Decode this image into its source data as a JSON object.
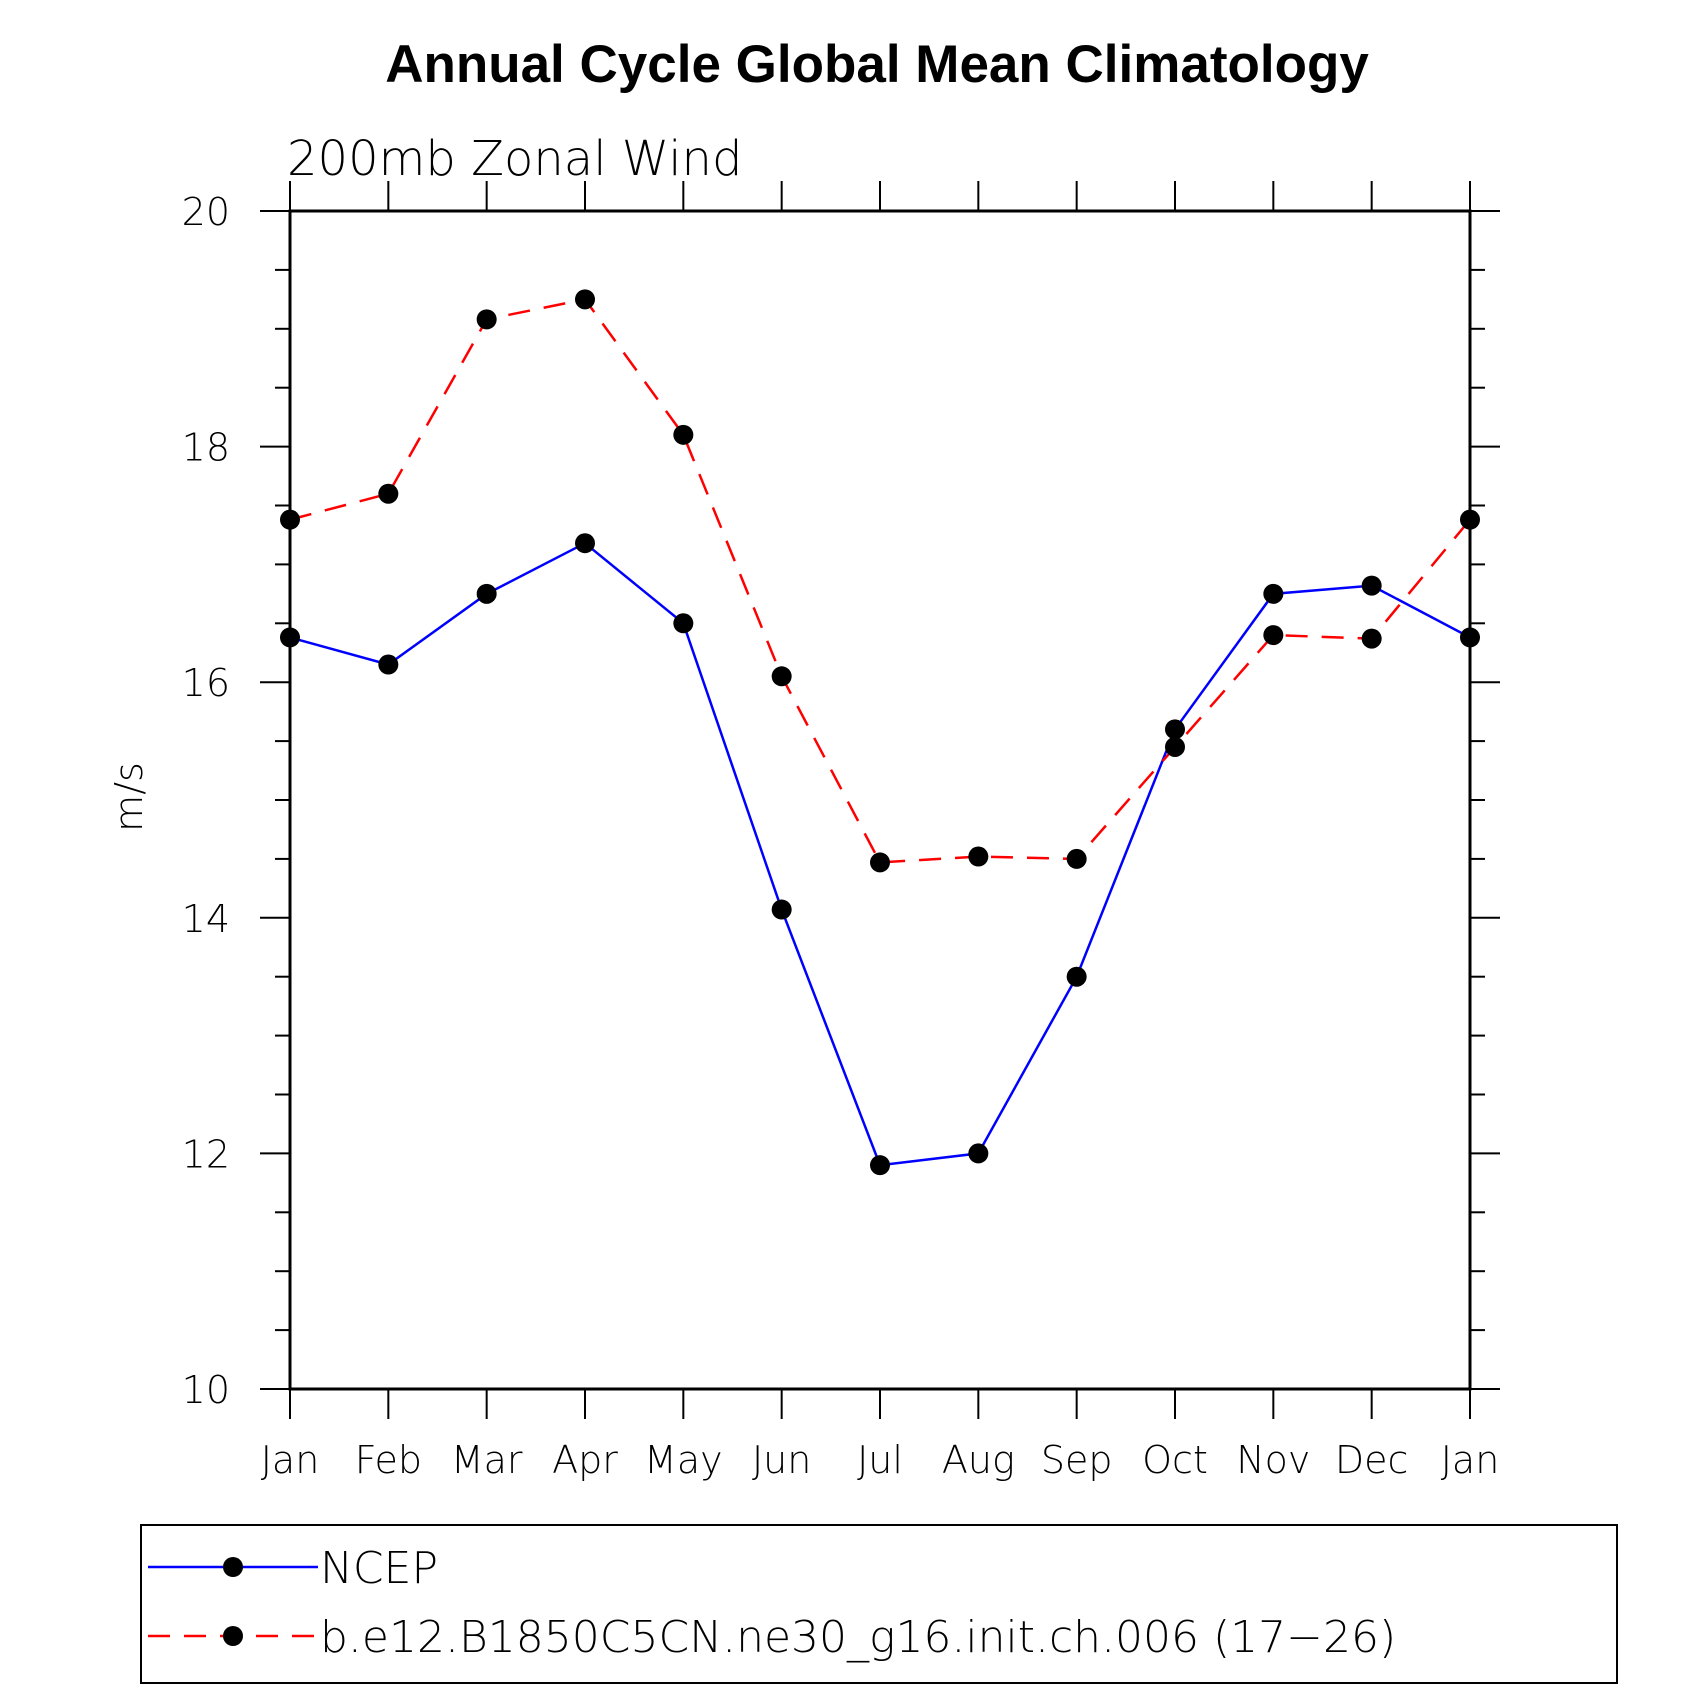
{
  "chart_data": {
    "type": "line",
    "title": "Annual Cycle Global Mean Climatology",
    "subtitle": "200mb Zonal Wind",
    "xlabel": "",
    "ylabel": "m/s",
    "categories": [
      "Jan",
      "Feb",
      "Mar",
      "Apr",
      "May",
      "Jun",
      "Jul",
      "Aug",
      "Sep",
      "Oct",
      "Nov",
      "Dec",
      "Jan"
    ],
    "ylim": [
      10,
      20
    ],
    "yticks": [
      10,
      12,
      14,
      16,
      18,
      20
    ],
    "grid": false,
    "legend_position": "bottom",
    "series": [
      {
        "name": "NCEP",
        "color": "#0000ff",
        "dash": "solid",
        "values": [
          16.38,
          16.15,
          16.75,
          17.18,
          16.5,
          14.07,
          11.9,
          12.0,
          13.5,
          15.6,
          16.75,
          16.82,
          16.38
        ]
      },
      {
        "name": "b.e12.B1850C5CN.ne30_g16.init.ch.006 (17−26)",
        "color": "#ff0000",
        "dash": "dashed",
        "values": [
          17.38,
          17.6,
          19.08,
          19.25,
          18.1,
          16.05,
          14.47,
          14.52,
          14.5,
          15.45,
          16.4,
          16.37,
          17.38
        ]
      }
    ]
  }
}
